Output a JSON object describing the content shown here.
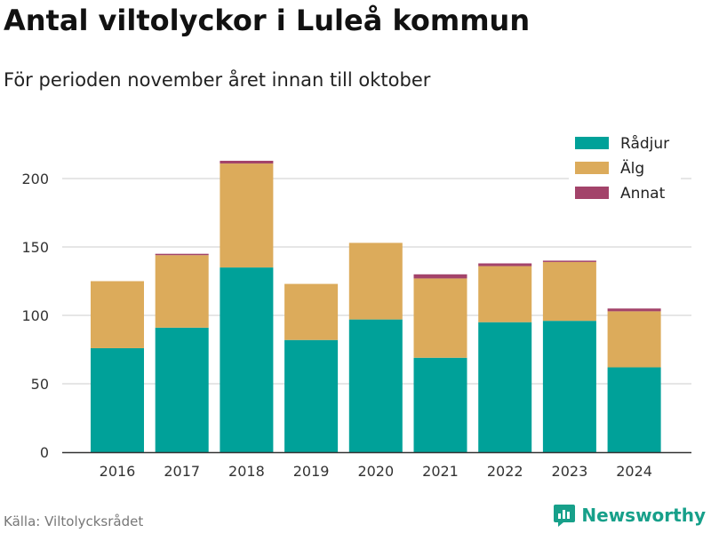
{
  "title": "Antal viltolyckor i Luleå kommun",
  "subtitle": "För perioden november året innan till oktober",
  "source": "Källa: Viltolycksrådet",
  "brand": {
    "name": "Newsworthy",
    "icon": "newsworthy-logo-icon",
    "color": "#17a08a"
  },
  "chart_data": {
    "type": "bar",
    "stacked": true,
    "categories": [
      "2016",
      "2017",
      "2018",
      "2019",
      "2020",
      "2021",
      "2022",
      "2023",
      "2024"
    ],
    "series": [
      {
        "name": "Rådjur",
        "color": "#00a199",
        "values": [
          76,
          91,
          135,
          82,
          97,
          69,
          95,
          96,
          62
        ]
      },
      {
        "name": "Älg",
        "color": "#dcab5b",
        "values": [
          49,
          53,
          76,
          41,
          56,
          58,
          41,
          43,
          41
        ]
      },
      {
        "name": "Annat",
        "color": "#a3436a",
        "values": [
          0,
          1,
          2,
          0,
          0,
          3,
          2,
          1,
          2
        ]
      }
    ],
    "ylim": [
      0,
      230
    ],
    "yticks": [
      0,
      50,
      100,
      150,
      200
    ],
    "grid": true,
    "legend_position": "top-right"
  }
}
